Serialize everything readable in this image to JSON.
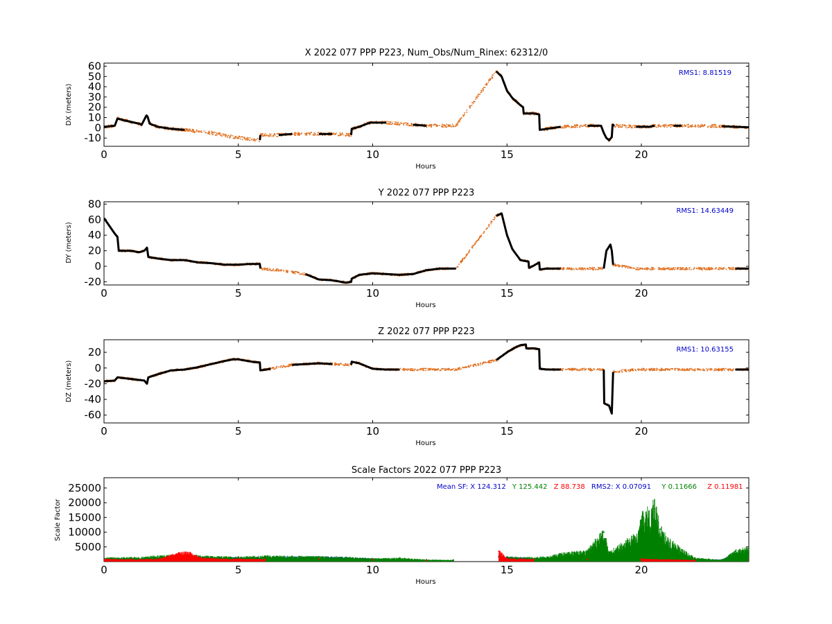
{
  "chart_data": [
    {
      "type": "scatter",
      "title": "X 2022 077 PPP  P223, Num_Obs/Num_Rinex: 62312/0",
      "xlabel": "Hours",
      "ylabel": "DX (meters)",
      "xlim": [
        0,
        24
      ],
      "ylim": [
        -18,
        63
      ],
      "xticks": [
        0,
        5,
        10,
        15,
        20
      ],
      "yticks": [
        -10,
        0,
        10,
        20,
        30,
        40,
        50,
        60
      ],
      "annotation": "RMS1:  8.81519",
      "annotation_color": "#0000cc",
      "series": [
        {
          "color": "#000000",
          "points": [
            [
              0.0,
              1
            ],
            [
              0.4,
              2
            ],
            [
              0.5,
              9
            ],
            [
              0.8,
              7
            ],
            [
              1.3,
              4
            ],
            [
              1.4,
              3
            ],
            [
              1.58,
              12
            ],
            [
              1.62,
              11
            ],
            [
              1.7,
              4
            ],
            [
              2.0,
              1
            ],
            [
              2.5,
              -1
            ],
            [
              3.0,
              -2
            ],
            [
              4.0,
              -5
            ],
            [
              4.8,
              -9
            ],
            [
              5.8,
              -12
            ],
            [
              5.82,
              -7
            ],
            [
              6.5,
              -7
            ],
            [
              7.0,
              -6
            ],
            [
              8.0,
              -6
            ],
            [
              8.5,
              -6
            ],
            [
              9.2,
              -7
            ],
            [
              9.22,
              -1
            ],
            [
              9.5,
              1
            ],
            [
              9.7,
              3
            ],
            [
              9.9,
              5
            ],
            [
              10.5,
              5
            ],
            [
              11.5,
              3
            ],
            [
              12.0,
              2
            ],
            [
              13.1,
              2
            ],
            [
              14.6,
              55
            ],
            [
              14.8,
              50
            ],
            [
              15.0,
              36
            ],
            [
              15.2,
              29
            ],
            [
              15.5,
              22
            ],
            [
              15.6,
              20
            ],
            [
              15.62,
              14
            ],
            [
              16.0,
              14
            ],
            [
              16.2,
              13
            ],
            [
              16.22,
              -2
            ],
            [
              16.5,
              -1
            ],
            [
              17.0,
              1
            ],
            [
              18.0,
              2
            ],
            [
              18.5,
              2
            ],
            [
              18.6,
              -5
            ],
            [
              18.7,
              -10
            ],
            [
              18.8,
              -12
            ],
            [
              18.9,
              -9
            ],
            [
              18.93,
              3
            ],
            [
              19.0,
              2
            ],
            [
              19.8,
              1
            ],
            [
              20.3,
              1
            ],
            [
              20.5,
              2
            ],
            [
              21.2,
              2
            ],
            [
              21.5,
              2
            ],
            [
              22.3,
              2
            ],
            [
              23.0,
              1.5
            ],
            [
              23.5,
              1
            ],
            [
              24.0,
              0.5
            ]
          ]
        }
      ]
    },
    {
      "type": "scatter",
      "title": "Y 2022 077 PPP  P223",
      "xlabel": "Hours",
      "ylabel": "DY (meters)",
      "xlim": [
        0,
        24
      ],
      "ylim": [
        -24,
        83
      ],
      "xticks": [
        0,
        5,
        10,
        15,
        20
      ],
      "yticks": [
        -20,
        0,
        20,
        40,
        60,
        80
      ],
      "annotation": "RMS1: 14.63449",
      "annotation_color": "#0000cc",
      "series": [
        {
          "color": "#000000",
          "points": [
            [
              0.0,
              62
            ],
            [
              0.2,
              52
            ],
            [
              0.4,
              42
            ],
            [
              0.5,
              38
            ],
            [
              0.55,
              20
            ],
            [
              1.0,
              20
            ],
            [
              1.3,
              18
            ],
            [
              1.5,
              20
            ],
            [
              1.6,
              24
            ],
            [
              1.65,
              12
            ],
            [
              2.0,
              10
            ],
            [
              2.5,
              8
            ],
            [
              3.0,
              8
            ],
            [
              3.5,
              5
            ],
            [
              4.0,
              4
            ],
            [
              4.5,
              2
            ],
            [
              5.0,
              2
            ],
            [
              5.4,
              3
            ],
            [
              5.8,
              3
            ],
            [
              5.82,
              -3
            ],
            [
              6.5,
              -5
            ],
            [
              7.5,
              -10
            ],
            [
              8.0,
              -17
            ],
            [
              8.5,
              -18
            ],
            [
              9.0,
              -21
            ],
            [
              9.2,
              -20
            ],
            [
              9.22,
              -16
            ],
            [
              9.5,
              -11
            ],
            [
              10.0,
              -9
            ],
            [
              10.5,
              -10
            ],
            [
              11.0,
              -11
            ],
            [
              11.5,
              -10
            ],
            [
              12.0,
              -5
            ],
            [
              12.5,
              -3
            ],
            [
              13.1,
              -3
            ],
            [
              14.6,
              65
            ],
            [
              14.8,
              68
            ],
            [
              15.0,
              40
            ],
            [
              15.2,
              22
            ],
            [
              15.5,
              8
            ],
            [
              15.8,
              6
            ],
            [
              15.82,
              -2
            ],
            [
              16.0,
              1
            ],
            [
              16.2,
              5
            ],
            [
              16.22,
              -4
            ],
            [
              16.5,
              -3
            ],
            [
              17.0,
              -3
            ],
            [
              18.0,
              -3
            ],
            [
              18.6,
              -3
            ],
            [
              18.7,
              20
            ],
            [
              18.85,
              28
            ],
            [
              18.9,
              20
            ],
            [
              18.95,
              2
            ],
            [
              19.8,
              -3
            ],
            [
              20.5,
              -3
            ],
            [
              21.5,
              -3
            ],
            [
              22.3,
              -3
            ],
            [
              23.5,
              -3
            ],
            [
              24.0,
              -3
            ]
          ]
        }
      ]
    },
    {
      "type": "scatter",
      "title": "Z 2022 077 PPP  P223",
      "xlabel": "Hours",
      "ylabel": "DZ (meters)",
      "xlim": [
        0,
        24
      ],
      "ylim": [
        -70,
        36
      ],
      "xticks": [
        0,
        5,
        10,
        15,
        20
      ],
      "yticks": [
        -60,
        -40,
        -20,
        0,
        20
      ],
      "annotation": "RMS1: 10.63155",
      "annotation_color": "#0000cc",
      "series": [
        {
          "color": "#000000",
          "points": [
            [
              0.0,
              -17
            ],
            [
              0.4,
              -16
            ],
            [
              0.5,
              -12
            ],
            [
              1.0,
              -14
            ],
            [
              1.5,
              -16
            ],
            [
              1.6,
              -20
            ],
            [
              1.65,
              -12
            ],
            [
              2.0,
              -8
            ],
            [
              2.5,
              -3
            ],
            [
              3.0,
              -2
            ],
            [
              3.5,
              1
            ],
            [
              4.0,
              5
            ],
            [
              4.5,
              9
            ],
            [
              4.8,
              11
            ],
            [
              5.0,
              11
            ],
            [
              5.5,
              8
            ],
            [
              5.8,
              7
            ],
            [
              5.82,
              -3
            ],
            [
              6.2,
              -1
            ],
            [
              7.0,
              4
            ],
            [
              7.5,
              5
            ],
            [
              8.0,
              6
            ],
            [
              8.5,
              5
            ],
            [
              9.2,
              4
            ],
            [
              9.22,
              8
            ],
            [
              9.5,
              6
            ],
            [
              10.0,
              -1
            ],
            [
              10.5,
              -2
            ],
            [
              11.0,
              -2
            ],
            [
              12.0,
              -2
            ],
            [
              13.1,
              -2
            ],
            [
              14.6,
              10
            ],
            [
              14.8,
              15
            ],
            [
              15.0,
              20
            ],
            [
              15.3,
              26
            ],
            [
              15.5,
              29
            ],
            [
              15.7,
              30
            ],
            [
              15.72,
              25
            ],
            [
              16.0,
              25
            ],
            [
              16.2,
              24
            ],
            [
              16.22,
              -1
            ],
            [
              16.5,
              -2
            ],
            [
              17.0,
              -2
            ],
            [
              18.0,
              -2
            ],
            [
              18.6,
              -2
            ],
            [
              18.62,
              -45
            ],
            [
              18.8,
              -48
            ],
            [
              18.9,
              -58
            ],
            [
              18.95,
              -5
            ],
            [
              19.8,
              -2
            ],
            [
              20.5,
              -2
            ],
            [
              21.5,
              -2
            ],
            [
              22.3,
              -2
            ],
            [
              23.5,
              -2
            ],
            [
              24.0,
              -2
            ]
          ]
        }
      ]
    },
    {
      "type": "scatter",
      "title": "Scale Factors 2022 077 PPP  P223",
      "xlabel": "Hours",
      "ylabel": "Scale Factor",
      "xlim": [
        0,
        24
      ],
      "ylim": [
        0,
        28500
      ],
      "xticks": [
        0,
        5,
        10,
        15,
        20
      ],
      "yticks": [
        5000,
        10000,
        15000,
        20000,
        25000
      ],
      "annotations": [
        {
          "text": "Mean SF: X 124.312",
          "color": "#0000cc"
        },
        {
          "text": "Y 125.442",
          "color": "#008000"
        },
        {
          "text": "Z  88.738",
          "color": "#ff0000"
        },
        {
          "text": "RMS2: X  0.07091",
          "color": "#0000cc"
        },
        {
          "text": "Y  0.11666",
          "color": "#008000"
        },
        {
          "text": "Z  0.11981",
          "color": "#ff0000"
        }
      ],
      "series": [
        {
          "name": "X",
          "color": "#0000ff",
          "points": [
            [
              0.0,
              1000
            ],
            [
              1.0,
              900
            ],
            [
              2.0,
              1200
            ],
            [
              3.0,
              1500
            ],
            [
              4.0,
              1400
            ],
            [
              5.0,
              1300
            ],
            [
              6.0,
              1400
            ],
            [
              7.0,
              1500
            ],
            [
              8.0,
              1600
            ],
            [
              9.0,
              1300
            ],
            [
              10.0,
              900
            ],
            [
              11.0,
              700
            ],
            [
              12.0,
              500
            ],
            [
              13.0,
              400
            ],
            [
              14.7,
              1500
            ],
            [
              15.5,
              1200
            ],
            [
              16.5,
              1000
            ],
            [
              17.5,
              1200
            ],
            [
              18.0,
              1100
            ],
            [
              18.6,
              2500
            ],
            [
              18.8,
              2000
            ],
            [
              19.9,
              1500
            ],
            [
              20.5,
              2500
            ],
            [
              21.0,
              1500
            ],
            [
              21.5,
              1000
            ],
            [
              22.0,
              800
            ],
            [
              23.0,
              600
            ],
            [
              23.5,
              2500
            ],
            [
              24.0,
              3000
            ]
          ]
        },
        {
          "name": "Y",
          "color": "#008000",
          "points": [
            [
              0.0,
              1200
            ],
            [
              1.0,
              1300
            ],
            [
              2.0,
              1800
            ],
            [
              3.0,
              2200
            ],
            [
              4.0,
              1600
            ],
            [
              5.0,
              1500
            ],
            [
              6.0,
              1800
            ],
            [
              7.0,
              1700
            ],
            [
              8.0,
              1600
            ],
            [
              9.0,
              1400
            ],
            [
              10.0,
              1000
            ],
            [
              11.0,
              1200
            ],
            [
              12.0,
              600
            ],
            [
              13.0,
              500
            ],
            [
              14.7,
              1800
            ],
            [
              15.5,
              1300
            ],
            [
              16.5,
              1500
            ],
            [
              17.0,
              2500
            ],
            [
              17.5,
              3000
            ],
            [
              18.0,
              3500
            ],
            [
              18.6,
              10000
            ],
            [
              18.8,
              3000
            ],
            [
              19.9,
              9000
            ],
            [
              20.0,
              14000
            ],
            [
              20.5,
              18000
            ],
            [
              20.7,
              11000
            ],
            [
              21.0,
              7000
            ],
            [
              21.5,
              4000
            ],
            [
              22.0,
              1200
            ],
            [
              22.5,
              800
            ],
            [
              23.0,
              600
            ],
            [
              23.5,
              3500
            ],
            [
              24.0,
              4500
            ]
          ]
        },
        {
          "name": "Z",
          "color": "#ff0000",
          "points": [
            [
              0.0,
              800
            ],
            [
              1.0,
              700
            ],
            [
              2.0,
              900
            ],
            [
              2.8,
              2800
            ],
            [
              3.2,
              3000
            ],
            [
              3.5,
              1500
            ],
            [
              4.0,
              1000
            ],
            [
              5.0,
              900
            ],
            [
              6.0,
              800
            ],
            [
              8.0,
              900
            ],
            [
              10.0,
              600
            ],
            [
              12.0,
              400
            ],
            [
              14.7,
              3500
            ],
            [
              15.0,
              1000
            ],
            [
              16.0,
              800
            ],
            [
              18.0,
              700
            ],
            [
              20.0,
              900
            ],
            [
              21.0,
              700
            ],
            [
              22.0,
              500
            ],
            [
              24.0,
              600
            ]
          ]
        }
      ]
    }
  ]
}
